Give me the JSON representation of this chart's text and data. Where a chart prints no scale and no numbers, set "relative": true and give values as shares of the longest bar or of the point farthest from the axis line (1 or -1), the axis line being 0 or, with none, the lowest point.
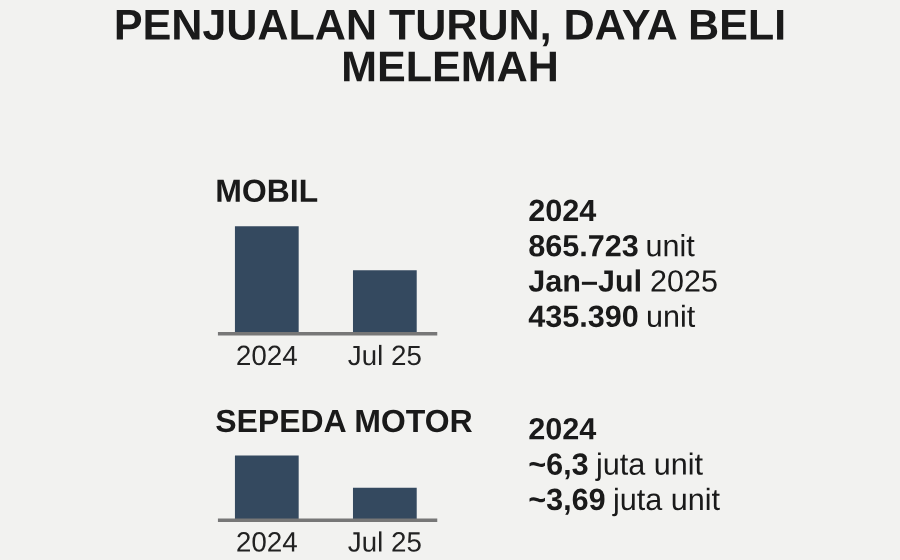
{
  "chart_data": [
    {
      "type": "other",
      "title": "PENJUALAN TURUN, DAYA BELI MELEMAH"
    },
    {
      "type": "bar",
      "title": "MOBIL",
      "relative": true,
      "categories": [
        "2024",
        "Jul 25"
      ],
      "values": [
        1,
        0.59
      ],
      "color": "#34495f",
      "annotations": [
        "2024",
        "865.723 unit",
        "Jan–Jul 2025",
        "435.390 unit"
      ]
    },
    {
      "type": "bar",
      "title": "SEPEDA MOTOR",
      "relative": true,
      "categories": [
        "2024",
        "Jul 25"
      ],
      "values": [
        1,
        0.5
      ],
      "color": "#34495f",
      "annotations": [
        "2024",
        "~6,3 juta unit",
        "~3,69 juta unit"
      ]
    }
  ]
}
